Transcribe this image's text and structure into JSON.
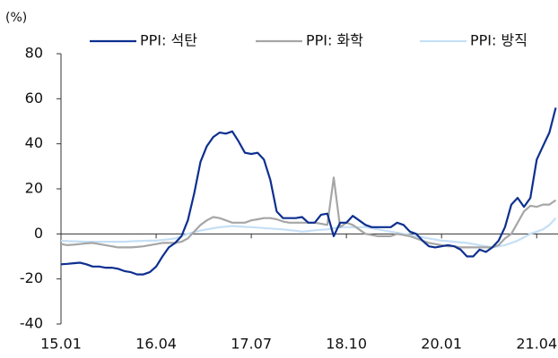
{
  "chart_data": {
    "type": "line",
    "y_label": "(%)",
    "categories": [
      "15.01",
      null,
      null,
      null,
      null,
      null,
      null,
      null,
      null,
      null,
      null,
      null,
      null,
      null,
      null,
      "16.04",
      null,
      null,
      null,
      null,
      null,
      null,
      null,
      null,
      null,
      null,
      null,
      null,
      null,
      null,
      "17.07",
      null,
      null,
      null,
      null,
      null,
      null,
      null,
      null,
      null,
      null,
      null,
      null,
      null,
      null,
      "18.10",
      null,
      null,
      null,
      null,
      null,
      null,
      null,
      null,
      null,
      null,
      null,
      null,
      null,
      null,
      "20.01",
      null,
      null,
      null,
      null,
      null,
      null,
      null,
      null,
      null,
      null,
      null,
      null,
      null,
      null,
      "21.04",
      null,
      null,
      null
    ],
    "ylim": [
      -40,
      80
    ],
    "yticks": [
      -40,
      -20,
      0,
      20,
      40,
      60,
      80
    ],
    "series": [
      {
        "name": "PPI: 석탄",
        "color": "#0d2f8f",
        "values": [
          -13.5,
          -13.3,
          -13,
          -12.8,
          -13.5,
          -14.5,
          -14.5,
          -15,
          -15,
          -15.5,
          -16.5,
          -17,
          -18,
          -18,
          -17,
          -14.5,
          -10,
          -6,
          -4,
          -1,
          6,
          18,
          32,
          39,
          43,
          45,
          44.5,
          45.5,
          41,
          36,
          35.5,
          36,
          33,
          24,
          10,
          7,
          7,
          7,
          7.5,
          5,
          5,
          8.5,
          9,
          -1,
          5,
          5,
          8,
          6,
          4,
          3,
          3,
          3,
          3,
          5,
          4,
          1,
          0,
          -3,
          -5.5,
          -6,
          -5.5,
          -5,
          -5.5,
          -7,
          -10,
          -10,
          -7,
          -8,
          -6,
          -3,
          3,
          13,
          16,
          12,
          16,
          33,
          39,
          45,
          56
        ]
      },
      {
        "name": "PPI: 화학",
        "color": "#a6a6a6",
        "values": [
          -4.5,
          -5,
          -4.8,
          -4.5,
          -4.2,
          -4,
          -4.5,
          -5,
          -5.5,
          -6,
          -6,
          -6,
          -5.8,
          -5.5,
          -5,
          -4.5,
          -4,
          -4,
          -4,
          -3.5,
          -2,
          1,
          4,
          6,
          7.5,
          7,
          6,
          5,
          5,
          5,
          6,
          6.5,
          7,
          7,
          6.5,
          5.5,
          5,
          5,
          5,
          5,
          5,
          4.5,
          4,
          25,
          3,
          5,
          4,
          2,
          0,
          -0.5,
          -1,
          -1,
          -1,
          0,
          -0.5,
          -1,
          -2,
          -3,
          -4,
          -4.5,
          -5,
          -5.5,
          -5.5,
          -6,
          -6,
          -6,
          -6,
          -6,
          -6,
          -5,
          -2,
          0,
          5,
          10,
          12.5,
          12,
          13,
          13,
          15
        ]
      },
      {
        "name": "PPI: 방직",
        "color": "#c5dff5",
        "values": [
          -3,
          -3.2,
          -3.3,
          -3.4,
          -3.5,
          -3.5,
          -3.5,
          -3.5,
          -3.5,
          -3.5,
          -3.5,
          -3.3,
          -3.2,
          -3.1,
          -3,
          -3,
          -2.7,
          -2.4,
          -2,
          -1,
          0,
          0.8,
          1.5,
          2,
          2.5,
          3,
          3.2,
          3.5,
          3.3,
          3.1,
          3,
          2.8,
          2.6,
          2.4,
          2.2,
          2,
          1.7,
          1.4,
          1,
          1.3,
          1.6,
          1.8,
          2,
          2.5,
          3,
          3,
          3,
          3,
          3,
          2.5,
          2,
          1.5,
          1,
          0.5,
          0,
          -0.5,
          -1,
          -1.5,
          -2,
          -2.5,
          -3,
          -3.2,
          -3.5,
          -3.8,
          -4,
          -4.5,
          -5,
          -5.5,
          -6,
          -5.5,
          -5,
          -4,
          -3,
          -1.5,
          0,
          1,
          2,
          4,
          7
        ]
      }
    ]
  }
}
